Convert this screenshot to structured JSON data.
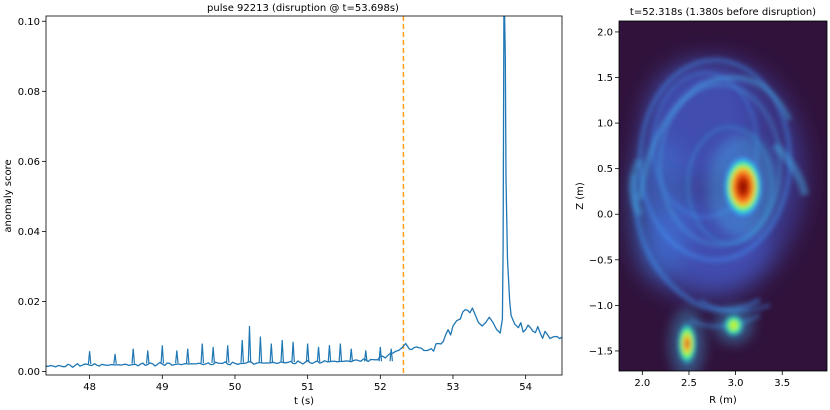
{
  "chart_data": [
    {
      "type": "line",
      "title": "pulse 92213 (disruption @ t=53.698s)",
      "xlabel": "t (s)",
      "ylabel": "anomaly score",
      "xlim": [
        47.4,
        54.5
      ],
      "ylim": [
        -0.001,
        0.1015
      ],
      "xticks": [
        "48",
        "49",
        "50",
        "51",
        "52",
        "53",
        "54"
      ],
      "yticks": [
        "0.00",
        "0.02",
        "0.04",
        "0.06",
        "0.08",
        "0.10"
      ],
      "grid": false,
      "series_color": "#1f77b4",
      "marker": {
        "x": 52.318,
        "style": "dashed",
        "color": "#ff9f1c"
      },
      "series": [
        {
          "x": [
            47.4,
            47.6,
            47.8,
            47.9,
            48.0,
            48.2,
            48.4,
            48.6,
            48.8,
            49.0,
            49.2,
            49.4,
            49.6,
            49.8,
            50.0,
            50.15,
            50.3,
            50.5,
            50.7,
            50.9,
            51.1,
            51.3,
            51.5,
            51.7,
            51.9,
            52.1,
            52.25,
            52.3,
            52.35,
            52.4,
            52.5,
            52.6,
            52.65,
            52.7,
            52.8,
            52.9,
            53.0,
            53.05,
            53.1,
            53.2,
            53.3,
            53.35,
            53.4,
            53.45,
            53.5,
            53.55,
            53.6,
            53.65,
            53.68,
            53.69,
            53.7,
            53.71,
            53.72,
            53.73,
            53.75,
            53.78,
            53.8,
            53.85,
            53.9,
            54.0,
            54.1,
            54.2,
            54.3,
            54.4,
            54.5
          ],
          "values": [
            0.0015,
            0.0016,
            0.0017,
            0.0018,
            0.0018,
            0.0019,
            0.0019,
            0.002,
            0.002,
            0.0021,
            0.0021,
            0.0022,
            0.0022,
            0.0023,
            0.0023,
            0.0024,
            0.0024,
            0.0025,
            0.0025,
            0.0026,
            0.0027,
            0.0028,
            0.0029,
            0.0031,
            0.0034,
            0.0045,
            0.006,
            0.0068,
            0.008,
            0.0064,
            0.007,
            0.006,
            0.006,
            0.0065,
            0.008,
            0.0105,
            0.013,
            0.0145,
            0.015,
            0.0175,
            0.0165,
            0.014,
            0.013,
            0.014,
            0.0155,
            0.014,
            0.012,
            0.011,
            0.015,
            0.035,
            0.1015,
            0.1015,
            0.09,
            0.055,
            0.032,
            0.02,
            0.016,
            0.0135,
            0.0125,
            0.012,
            0.0115,
            0.011,
            0.0105,
            0.01,
            0.0098
          ],
          "spikes": [
            {
              "x": 48.0,
              "y": 0.0058
            },
            {
              "x": 48.35,
              "y": 0.005
            },
            {
              "x": 48.6,
              "y": 0.0065
            },
            {
              "x": 48.8,
              "y": 0.006
            },
            {
              "x": 49.0,
              "y": 0.0075
            },
            {
              "x": 49.2,
              "y": 0.006
            },
            {
              "x": 49.35,
              "y": 0.0065
            },
            {
              "x": 49.55,
              "y": 0.008
            },
            {
              "x": 49.7,
              "y": 0.007
            },
            {
              "x": 49.9,
              "y": 0.0075
            },
            {
              "x": 50.1,
              "y": 0.009
            },
            {
              "x": 50.2,
              "y": 0.013
            },
            {
              "x": 50.35,
              "y": 0.01
            },
            {
              "x": 50.5,
              "y": 0.008
            },
            {
              "x": 50.65,
              "y": 0.009
            },
            {
              "x": 50.8,
              "y": 0.0085
            },
            {
              "x": 51.0,
              "y": 0.008
            },
            {
              "x": 51.15,
              "y": 0.007
            },
            {
              "x": 51.3,
              "y": 0.0075
            },
            {
              "x": 51.45,
              "y": 0.008
            },
            {
              "x": 51.6,
              "y": 0.0065
            },
            {
              "x": 51.8,
              "y": 0.006
            },
            {
              "x": 52.0,
              "y": 0.007
            },
            {
              "x": 52.15,
              "y": 0.0065
            }
          ]
        }
      ]
    },
    {
      "type": "heatmap",
      "title": "t=52.318s (1.380s before disruption)",
      "xlabel": "R (m)",
      "ylabel": "Z (m)",
      "xlim": [
        1.75,
        3.98
      ],
      "ylim": [
        -1.72,
        2.12
      ],
      "xticks": [
        "2.0",
        "2.5",
        "3.0",
        "3.5"
      ],
      "yticks": [
        "−1.5",
        "−1.0",
        "−0.5",
        "0.0",
        "0.5",
        "1.0",
        "1.5",
        "2.0"
      ],
      "background_color": "#30123b",
      "colormap": "turbo",
      "hotspots": [
        {
          "R": 3.08,
          "Z": 0.3,
          "intensity": 1.0
        },
        {
          "R": 2.48,
          "Z": -1.42,
          "intensity": 0.95
        },
        {
          "R": 2.98,
          "Z": -1.22,
          "intensity": 0.65
        }
      ]
    }
  ]
}
